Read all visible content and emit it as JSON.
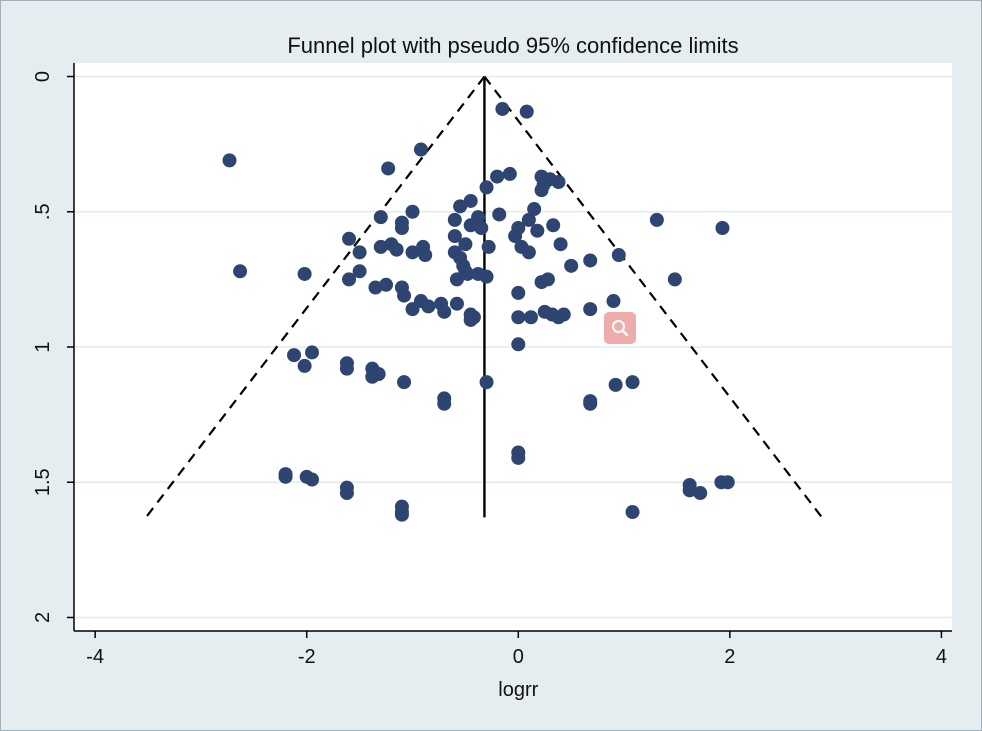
{
  "colors": {
    "background": "#e6edf1",
    "plot_area": "#ffffff",
    "grid": "#e3eaee",
    "marker": "#2d4570",
    "lines": "#000000",
    "zoom_badge": "#e88c8c"
  },
  "zoom_badge": {
    "icon": "magnifier-icon"
  },
  "chart_data": {
    "type": "scatter",
    "title": "Funnel plot with pseudo 95% confidence limits",
    "xlabel": "logrr",
    "ylabel": "",
    "xlim": [
      -4.2,
      4.1
    ],
    "ylim": [
      2.05,
      -0.05
    ],
    "y_reversed": true,
    "grid": true,
    "xticks": [
      -4,
      -2,
      0,
      2,
      4
    ],
    "xtick_labels": [
      "-4",
      "-2",
      "0",
      "2",
      "4"
    ],
    "yticks": [
      0,
      0.5,
      1,
      1.5,
      2
    ],
    "ytick_labels": [
      "0",
      ".5",
      "1",
      "1.5",
      "2"
    ],
    "pooled_estimate": -0.32,
    "funnel": {
      "apex": [
        -0.32,
        0
      ],
      "left_end": [
        -3.52,
        1.63
      ],
      "right_end": [
        2.87,
        1.63
      ]
    },
    "points": [
      [
        -0.15,
        0.12
      ],
      [
        0.08,
        0.13
      ],
      [
        -2.73,
        0.31
      ],
      [
        -0.92,
        0.27
      ],
      [
        -1.23,
        0.34
      ],
      [
        -0.2,
        0.37
      ],
      [
        -0.08,
        0.36
      ],
      [
        -0.3,
        0.41
      ],
      [
        0.22,
        0.37
      ],
      [
        0.3,
        0.38
      ],
      [
        0.38,
        0.39
      ],
      [
        0.24,
        0.4
      ],
      [
        0.22,
        0.42
      ],
      [
        -0.45,
        0.46
      ],
      [
        -0.55,
        0.48
      ],
      [
        -1.3,
        0.52
      ],
      [
        -1.0,
        0.5
      ],
      [
        -0.38,
        0.52
      ],
      [
        -0.18,
        0.51
      ],
      [
        0.15,
        0.49
      ],
      [
        1.31,
        0.53
      ],
      [
        1.93,
        0.56
      ],
      [
        -1.1,
        0.56
      ],
      [
        -1.1,
        0.54
      ],
      [
        -0.6,
        0.53
      ],
      [
        -0.45,
        0.55
      ],
      [
        -0.35,
        0.56
      ],
      [
        0.0,
        0.56
      ],
      [
        0.1,
        0.53
      ],
      [
        0.18,
        0.57
      ],
      [
        0.33,
        0.55
      ],
      [
        -1.6,
        0.6
      ],
      [
        -1.5,
        0.65
      ],
      [
        -1.3,
        0.63
      ],
      [
        -1.2,
        0.62
      ],
      [
        -1.15,
        0.64
      ],
      [
        -1.0,
        0.65
      ],
      [
        -0.9,
        0.63
      ],
      [
        -0.88,
        0.66
      ],
      [
        -0.6,
        0.59
      ],
      [
        -0.5,
        0.62
      ],
      [
        -0.28,
        0.63
      ],
      [
        -0.03,
        0.59
      ],
      [
        0.03,
        0.63
      ],
      [
        0.1,
        0.65
      ],
      [
        0.4,
        0.62
      ],
      [
        -2.63,
        0.72
      ],
      [
        -2.02,
        0.73
      ],
      [
        -1.6,
        0.75
      ],
      [
        -1.5,
        0.72
      ],
      [
        -1.35,
        0.78
      ],
      [
        -1.25,
        0.77
      ],
      [
        -1.1,
        0.78
      ],
      [
        -1.08,
        0.81
      ],
      [
        -0.6,
        0.65
      ],
      [
        -0.55,
        0.67
      ],
      [
        -0.52,
        0.7
      ],
      [
        -0.5,
        0.72
      ],
      [
        -0.58,
        0.75
      ],
      [
        -0.48,
        0.73
      ],
      [
        -0.38,
        0.73
      ],
      [
        -0.3,
        0.74
      ],
      [
        0.5,
        0.7
      ],
      [
        0.68,
        0.68
      ],
      [
        0.95,
        0.66
      ],
      [
        1.48,
        0.75
      ],
      [
        0.28,
        0.75
      ],
      [
        0.22,
        0.76
      ],
      [
        0.0,
        0.8
      ],
      [
        -1.0,
        0.86
      ],
      [
        -0.92,
        0.83
      ],
      [
        -0.85,
        0.85
      ],
      [
        -0.73,
        0.84
      ],
      [
        -0.7,
        0.87
      ],
      [
        -0.58,
        0.84
      ],
      [
        -0.45,
        0.88
      ],
      [
        -0.42,
        0.89
      ],
      [
        -0.45,
        0.9
      ],
      [
        0.0,
        0.89
      ],
      [
        0.12,
        0.89
      ],
      [
        0.25,
        0.87
      ],
      [
        0.32,
        0.88
      ],
      [
        0.38,
        0.89
      ],
      [
        0.43,
        0.88
      ],
      [
        0.68,
        0.86
      ],
      [
        0.9,
        0.83
      ],
      [
        0.0,
        0.99
      ],
      [
        -2.12,
        1.03
      ],
      [
        -1.95,
        1.02
      ],
      [
        -2.02,
        1.07
      ],
      [
        -1.62,
        1.06
      ],
      [
        -1.62,
        1.08
      ],
      [
        -1.38,
        1.08
      ],
      [
        -1.38,
        1.11
      ],
      [
        -1.32,
        1.1
      ],
      [
        -1.08,
        1.13
      ],
      [
        -0.3,
        1.13
      ],
      [
        0.92,
        1.14
      ],
      [
        1.08,
        1.13
      ],
      [
        -0.7,
        1.19
      ],
      [
        -0.7,
        1.21
      ],
      [
        0.68,
        1.2
      ],
      [
        0.68,
        1.21
      ],
      [
        0.0,
        1.39
      ],
      [
        0.0,
        1.41
      ],
      [
        -2.2,
        1.47
      ],
      [
        -2.2,
        1.48
      ],
      [
        -2.0,
        1.48
      ],
      [
        -1.95,
        1.49
      ],
      [
        -1.62,
        1.52
      ],
      [
        -1.62,
        1.54
      ],
      [
        -1.1,
        1.59
      ],
      [
        -1.1,
        1.61
      ],
      [
        -1.1,
        1.62
      ],
      [
        1.08,
        1.61
      ],
      [
        1.62,
        1.51
      ],
      [
        1.62,
        1.53
      ],
      [
        1.72,
        1.54
      ],
      [
        1.92,
        1.5
      ],
      [
        1.98,
        1.5
      ]
    ]
  }
}
